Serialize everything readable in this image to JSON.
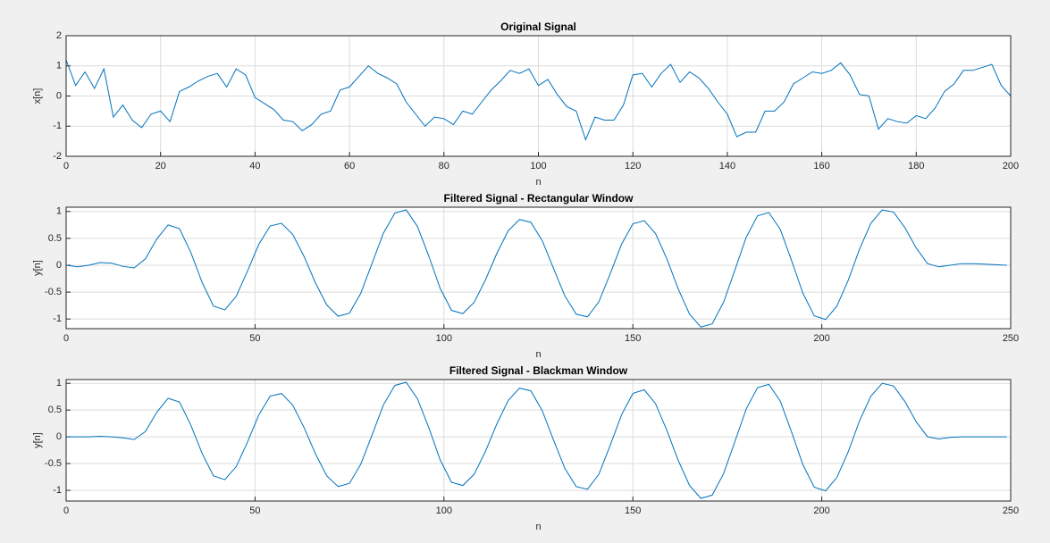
{
  "chart_data": [
    {
      "type": "line",
      "title": "Original Signal",
      "x_label": "n",
      "y_label": "x[n]",
      "color": "#0072bd",
      "grid": true,
      "xlim": [
        0,
        200
      ],
      "ylim": [
        -2,
        2
      ],
      "xticks": [
        0,
        20,
        40,
        60,
        80,
        100,
        120,
        140,
        160,
        180,
        200
      ],
      "yticks": [
        -2,
        -1,
        0,
        1,
        2
      ],
      "x": [
        0,
        2,
        4,
        6,
        8,
        10,
        12,
        14,
        16,
        18,
        20,
        22,
        24,
        26,
        28,
        30,
        32,
        34,
        36,
        38,
        40,
        42,
        44,
        46,
        48,
        50,
        52,
        54,
        56,
        58,
        60,
        62,
        64,
        66,
        68,
        70,
        72,
        74,
        76,
        78,
        80,
        82,
        84,
        86,
        88,
        90,
        92,
        94,
        96,
        98,
        100,
        102,
        104,
        106,
        108,
        110,
        112,
        114,
        116,
        118,
        120,
        122,
        124,
        126,
        128,
        130,
        132,
        134,
        136,
        138,
        140,
        142,
        144,
        146,
        148,
        150,
        152,
        154,
        156,
        158,
        160,
        162,
        164,
        166,
        168,
        170,
        172,
        174,
        176,
        178,
        180,
        182,
        184,
        186,
        188,
        190,
        192,
        194,
        196,
        198,
        200
      ],
      "values": [
        1.2,
        0.35,
        0.8,
        0.25,
        0.9,
        -0.7,
        -0.3,
        -0.8,
        -1.05,
        -0.6,
        -0.5,
        -0.85,
        0.15,
        0.3,
        0.5,
        0.65,
        0.75,
        0.3,
        0.9,
        0.7,
        -0.05,
        -0.25,
        -0.45,
        -0.8,
        -0.85,
        -1.15,
        -0.95,
        -0.6,
        -0.5,
        0.2,
        0.3,
        0.65,
        1.0,
        0.75,
        0.6,
        0.4,
        -0.2,
        -0.6,
        -1.0,
        -0.7,
        -0.75,
        -0.95,
        -0.5,
        -0.6,
        -0.2,
        0.2,
        0.5,
        0.85,
        0.75,
        0.9,
        0.35,
        0.55,
        0.05,
        -0.35,
        -0.5,
        -1.45,
        -0.7,
        -0.8,
        -0.8,
        -0.3,
        0.7,
        0.75,
        0.3,
        0.75,
        1.05,
        0.45,
        0.8,
        0.6,
        0.25,
        -0.2,
        -0.6,
        -1.35,
        -1.2,
        -1.2,
        -0.5,
        -0.5,
        -0.2,
        0.4,
        0.6,
        0.8,
        0.75,
        0.85,
        1.1,
        0.7,
        0.05,
        0.0,
        -1.1,
        -0.75,
        -0.85,
        -0.9,
        -0.65,
        -0.75,
        -0.4,
        0.15,
        0.4,
        0.85,
        0.85,
        0.95,
        1.05,
        0.35,
        0.0
      ]
    },
    {
      "type": "line",
      "title": "Filtered Signal - Rectangular Window",
      "x_label": "n",
      "y_label": "y[n]",
      "color": "#0072bd",
      "grid": true,
      "xlim": [
        0,
        250
      ],
      "ylim": [
        -1.18,
        1.08
      ],
      "xticks": [
        0,
        50,
        100,
        150,
        200,
        250
      ],
      "yticks": [
        -1,
        -0.5,
        0,
        0.5,
        1
      ],
      "x": [
        0,
        3,
        6,
        9,
        12,
        15,
        18,
        21,
        24,
        27,
        30,
        33,
        36,
        39,
        42,
        45,
        48,
        51,
        54,
        57,
        60,
        63,
        66,
        69,
        72,
        75,
        78,
        81,
        84,
        87,
        90,
        93,
        96,
        99,
        102,
        105,
        108,
        111,
        114,
        117,
        120,
        123,
        126,
        129,
        132,
        135,
        138,
        141,
        144,
        147,
        150,
        153,
        156,
        159,
        162,
        165,
        168,
        171,
        174,
        177,
        180,
        183,
        186,
        189,
        192,
        195,
        198,
        201,
        204,
        207,
        210,
        213,
        216,
        219,
        222,
        225,
        228,
        231,
        234,
        237,
        240,
        243,
        246,
        249
      ],
      "values": [
        0.0,
        -0.03,
        0.0,
        0.05,
        0.04,
        -0.02,
        -0.05,
        0.12,
        0.49,
        0.75,
        0.68,
        0.24,
        -0.32,
        -0.76,
        -0.83,
        -0.58,
        -0.11,
        0.39,
        0.73,
        0.78,
        0.57,
        0.16,
        -0.33,
        -0.74,
        -0.95,
        -0.89,
        -0.52,
        0.04,
        0.6,
        0.97,
        1.03,
        0.72,
        0.17,
        -0.43,
        -0.84,
        -0.9,
        -0.69,
        -0.27,
        0.22,
        0.64,
        0.85,
        0.8,
        0.46,
        -0.06,
        -0.57,
        -0.91,
        -0.96,
        -0.68,
        -0.16,
        0.39,
        0.77,
        0.83,
        0.59,
        0.12,
        -0.44,
        -0.91,
        -1.15,
        -1.09,
        -0.69,
        -0.09,
        0.52,
        0.92,
        0.98,
        0.67,
        0.09,
        -0.52,
        -0.94,
        -1.01,
        -0.76,
        -0.28,
        0.3,
        0.78,
        1.03,
        0.99,
        0.7,
        0.32,
        0.03,
        -0.03,
        0.0,
        0.03,
        0.03,
        0.02,
        0.01,
        0.0
      ]
    },
    {
      "type": "line",
      "title": "Filtered Signal - Blackman Window",
      "x_label": "n",
      "y_label": "y[n]",
      "color": "#0072bd",
      "grid": true,
      "xlim": [
        0,
        250
      ],
      "ylim": [
        -1.2,
        1.07
      ],
      "xticks": [
        0,
        50,
        100,
        150,
        200,
        250
      ],
      "yticks": [
        -1,
        -0.5,
        0,
        0.5,
        1
      ],
      "x": [
        0,
        3,
        6,
        9,
        12,
        15,
        18,
        21,
        24,
        27,
        30,
        33,
        36,
        39,
        42,
        45,
        48,
        51,
        54,
        57,
        60,
        63,
        66,
        69,
        72,
        75,
        78,
        81,
        84,
        87,
        90,
        93,
        96,
        99,
        102,
        105,
        108,
        111,
        114,
        117,
        120,
        123,
        126,
        129,
        132,
        135,
        138,
        141,
        144,
        147,
        150,
        153,
        156,
        159,
        162,
        165,
        168,
        171,
        174,
        177,
        180,
        183,
        186,
        189,
        192,
        195,
        198,
        201,
        204,
        207,
        210,
        213,
        216,
        219,
        222,
        225,
        228,
        231,
        234,
        237,
        240,
        243,
        246,
        249
      ],
      "values": [
        0.0,
        0.0,
        0.0,
        0.01,
        0.0,
        -0.02,
        -0.05,
        0.1,
        0.46,
        0.72,
        0.65,
        0.22,
        -0.31,
        -0.73,
        -0.8,
        -0.56,
        -0.1,
        0.41,
        0.76,
        0.81,
        0.59,
        0.17,
        -0.32,
        -0.73,
        -0.93,
        -0.87,
        -0.51,
        0.04,
        0.6,
        0.96,
        1.02,
        0.71,
        0.17,
        -0.43,
        -0.85,
        -0.91,
        -0.7,
        -0.27,
        0.24,
        0.68,
        0.91,
        0.86,
        0.49,
        -0.06,
        -0.59,
        -0.93,
        -0.98,
        -0.7,
        -0.16,
        0.41,
        0.81,
        0.88,
        0.62,
        0.12,
        -0.44,
        -0.91,
        -1.15,
        -1.09,
        -0.69,
        -0.09,
        0.52,
        0.92,
        0.98,
        0.67,
        0.09,
        -0.52,
        -0.94,
        -1.01,
        -0.76,
        -0.28,
        0.3,
        0.76,
        1.0,
        0.95,
        0.66,
        0.28,
        0.0,
        -0.04,
        -0.01,
        0.0,
        0.0,
        0.0,
        0.0,
        0.0
      ]
    }
  ]
}
